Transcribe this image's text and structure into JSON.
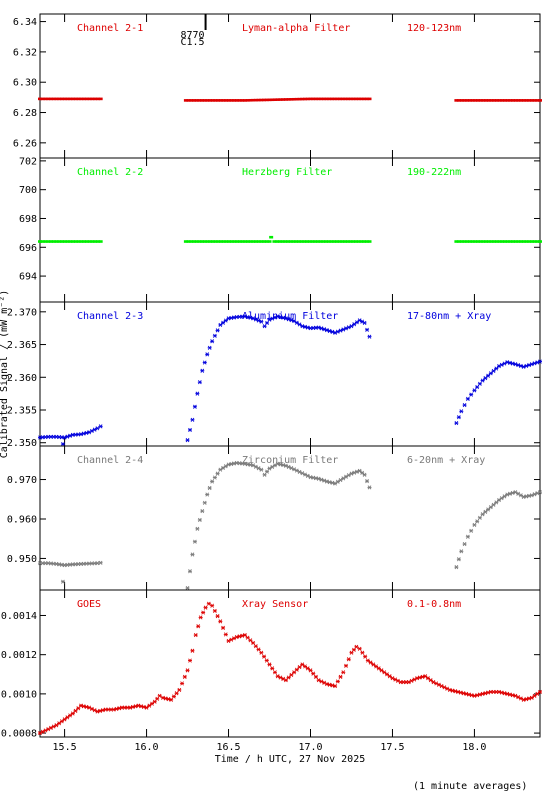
{
  "xlabel": "Time / h UTC, 27 Nov 2025",
  "ylabel": "Calibrated Signal / (mW m⁻²)",
  "footnote": "(1 minute averages)",
  "marker": {
    "top": "8770",
    "bottom": "C1.5",
    "x": 16.36
  },
  "x_ticks": [
    "15.5",
    "16.0",
    "16.5",
    "17.0",
    "17.5",
    "18.0"
  ],
  "chart_data": [
    {
      "type": "scatter",
      "labels": [
        "Channel 2-1",
        "Lyman-alpha Filter",
        "120-123nm"
      ],
      "color": "#dd0000",
      "xlim": [
        15.35,
        18.4
      ],
      "ylim": [
        6.25,
        6.345
      ],
      "y_ticks": [
        "6.26",
        "6.28",
        "6.30",
        "6.32",
        "6.34"
      ],
      "marker": "dash",
      "series": [
        {
          "x": [
            15.35,
            15.72
          ],
          "y": [
            6.289,
            6.289
          ]
        },
        {
          "x": [
            16.24,
            16.6,
            17.0,
            17.36
          ],
          "y": [
            6.288,
            6.288,
            6.289,
            6.289
          ]
        },
        {
          "x": [
            17.89,
            18.4
          ],
          "y": [
            6.288,
            6.288
          ]
        }
      ]
    },
    {
      "type": "scatter",
      "labels": [
        "Channel 2-2",
        "Herzberg Filter",
        "190-222nm"
      ],
      "color": "#00ee00",
      "xlim": [
        15.35,
        18.4
      ],
      "ylim": [
        692.2,
        702.2
      ],
      "y_ticks": [
        "694",
        "696",
        "698",
        "700",
        "702"
      ],
      "marker": "dash",
      "series": [
        {
          "x": [
            15.35,
            15.72
          ],
          "y": [
            696.4,
            696.4
          ]
        },
        {
          "x": [
            16.24,
            16.75,
            16.76,
            16.78,
            17.36
          ],
          "y": [
            696.4,
            696.4,
            696.7,
            696.4,
            696.4
          ]
        },
        {
          "x": [
            17.89,
            18.4
          ],
          "y": [
            696.4,
            696.4
          ]
        }
      ]
    },
    {
      "type": "scatter",
      "labels": [
        "Channel 2-3",
        "Aluminium Filter",
        "17-80nm + Xray"
      ],
      "color": "#0000dd",
      "xlim": [
        15.35,
        18.4
      ],
      "ylim": [
        2.3495,
        2.3715
      ],
      "y_ticks": [
        "2.350",
        "2.355",
        "2.360",
        "2.365",
        "2.370"
      ],
      "marker": "asterisk",
      "series": [
        {
          "x": [
            15.35,
            15.4,
            15.45,
            15.5,
            15.55,
            15.6,
            15.65,
            15.7,
            15.72
          ],
          "y": [
            2.3508,
            2.3509,
            2.3509,
            2.3508,
            2.3512,
            2.3513,
            2.3516,
            2.3522,
            2.3525
          ]
        },
        {
          "x": [
            15.49
          ],
          "y": [
            2.3498
          ]
        },
        {
          "x": [
            16.25,
            16.28,
            16.31,
            16.34,
            16.37,
            16.4,
            16.45,
            16.5,
            16.55,
            16.6,
            16.65,
            16.7,
            16.72,
            16.75,
            16.8,
            16.85,
            16.9,
            16.95,
            17.0,
            17.05,
            17.1,
            17.15,
            17.2,
            17.25,
            17.3,
            17.33,
            17.36
          ],
          "y": [
            2.3504,
            2.3535,
            2.3575,
            2.361,
            2.3635,
            2.3655,
            2.368,
            2.369,
            2.3692,
            2.3693,
            2.369,
            2.3685,
            2.3678,
            2.3688,
            2.3693,
            2.369,
            2.3686,
            2.3678,
            2.3675,
            2.3676,
            2.3672,
            2.3668,
            2.3673,
            2.3678,
            2.3687,
            2.3683,
            2.3662
          ]
        },
        {
          "x": [
            17.89,
            17.92,
            17.96,
            18.0,
            18.05,
            18.1,
            18.15,
            18.2,
            18.25,
            18.3,
            18.35,
            18.4
          ],
          "y": [
            2.353,
            2.3548,
            2.3567,
            2.358,
            2.3595,
            2.3606,
            2.3617,
            2.3623,
            2.362,
            2.3616,
            2.362,
            2.3624
          ]
        }
      ]
    },
    {
      "type": "scatter",
      "labels": [
        "Channel 2-4",
        "Zirconium Filter",
        "6-20nm + Xray"
      ],
      "color": "#7a7a7a",
      "xlim": [
        15.35,
        18.4
      ],
      "ylim": [
        0.942,
        0.9785
      ],
      "y_ticks": [
        "0.950",
        "0.960",
        "0.970"
      ],
      "marker": "asterisk",
      "series": [
        {
          "x": [
            15.35,
            15.4,
            15.45,
            15.5,
            15.55,
            15.6,
            15.65,
            15.7,
            15.72
          ],
          "y": [
            0.9488,
            0.9488,
            0.9486,
            0.9483,
            0.9485,
            0.9486,
            0.9487,
            0.9488,
            0.9489
          ]
        },
        {
          "x": [
            15.49
          ],
          "y": [
            0.9441
          ]
        },
        {
          "x": [
            16.25,
            16.28,
            16.31,
            16.34,
            16.37,
            16.4,
            16.45,
            16.5,
            16.55,
            16.6,
            16.65,
            16.7,
            16.72,
            16.75,
            16.8,
            16.85,
            16.9,
            16.95,
            17.0,
            17.05,
            17.1,
            17.15,
            17.2,
            17.25,
            17.3,
            17.33,
            17.36
          ],
          "y": [
            0.9425,
            0.951,
            0.9575,
            0.962,
            0.9662,
            0.9695,
            0.9725,
            0.9738,
            0.9742,
            0.974,
            0.9736,
            0.9725,
            0.9712,
            0.9728,
            0.974,
            0.9735,
            0.9726,
            0.9716,
            0.9706,
            0.9702,
            0.9695,
            0.969,
            0.9703,
            0.9715,
            0.9722,
            0.9712,
            0.968
          ]
        },
        {
          "x": [
            17.89,
            17.92,
            17.96,
            18.0,
            18.05,
            18.1,
            18.15,
            18.2,
            18.25,
            18.3,
            18.35,
            18.4
          ],
          "y": [
            0.9478,
            0.9518,
            0.9555,
            0.9585,
            0.9612,
            0.963,
            0.9648,
            0.9662,
            0.9668,
            0.9656,
            0.966,
            0.9668
          ]
        }
      ]
    },
    {
      "type": "scatter",
      "labels": [
        "GOES",
        "Xray Sensor",
        "0.1-0.8nm"
      ],
      "color": "#dd0000",
      "xlim": [
        15.35,
        18.4
      ],
      "ylim": [
        0.00078,
        0.00153
      ],
      "y_ticks": [
        "0.0008",
        "0.0010",
        "0.0012",
        "0.0014"
      ],
      "marker": "asterisk",
      "series": [
        {
          "x": [
            15.35,
            15.4,
            15.45,
            15.5,
            15.55,
            15.6,
            15.65,
            15.7,
            15.75,
            15.8,
            15.85,
            15.9,
            15.95,
            16.0,
            16.05,
            16.08,
            16.1,
            16.15,
            16.2,
            16.25,
            16.28,
            16.3,
            16.33,
            16.36,
            16.38,
            16.4,
            16.45,
            16.5,
            16.55,
            16.6,
            16.65,
            16.7,
            16.75,
            16.8,
            16.85,
            16.9,
            16.95,
            17.0,
            17.05,
            17.1,
            17.15,
            17.2,
            17.25,
            17.28,
            17.3,
            17.35,
            17.4,
            17.45,
            17.5,
            17.55,
            17.6,
            17.65,
            17.7,
            17.75,
            17.8,
            17.85,
            17.9,
            17.95,
            18.0,
            18.05,
            18.1,
            18.15,
            18.2,
            18.25,
            18.3,
            18.35,
            18.4
          ],
          "y": [
            0.0008,
            0.00082,
            0.00084,
            0.00087,
            0.0009,
            0.00094,
            0.00093,
            0.00091,
            0.00092,
            0.00092,
            0.00093,
            0.00093,
            0.00094,
            0.00093,
            0.00096,
            0.00099,
            0.00098,
            0.00097,
            0.00102,
            0.00112,
            0.00122,
            0.0013,
            0.00139,
            0.00144,
            0.00146,
            0.00145,
            0.00137,
            0.00127,
            0.00129,
            0.0013,
            0.00126,
            0.00121,
            0.00115,
            0.00109,
            0.00107,
            0.00111,
            0.00115,
            0.00112,
            0.00107,
            0.00105,
            0.00104,
            0.00111,
            0.00121,
            0.00124,
            0.00123,
            0.00117,
            0.00114,
            0.00111,
            0.00108,
            0.00106,
            0.00106,
            0.00108,
            0.00109,
            0.00106,
            0.00104,
            0.00102,
            0.00101,
            0.001,
            0.00099,
            0.001,
            0.00101,
            0.00101,
            0.001,
            0.00099,
            0.00097,
            0.00098,
            0.00101
          ]
        }
      ]
    }
  ]
}
